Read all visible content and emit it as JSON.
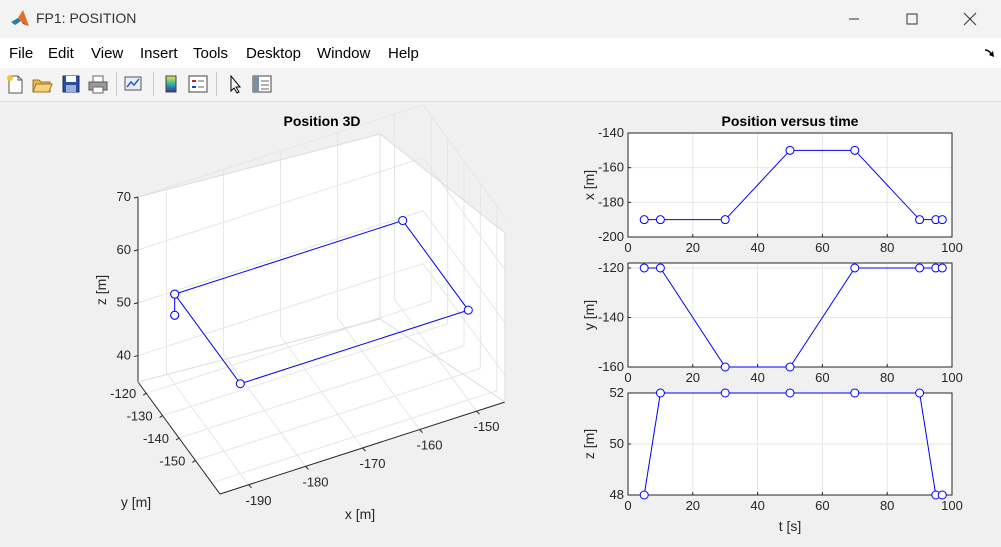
{
  "window": {
    "title": "FP1: POSITION"
  },
  "menu": [
    "File",
    "Edit",
    "View",
    "Insert",
    "Tools",
    "Desktop",
    "Window",
    "Help"
  ],
  "toolbar_icons": [
    "new-figure-icon",
    "open-file-icon",
    "save-icon",
    "print-icon",
    "link-plot-icon",
    "insert-colorbar-icon",
    "insert-legend-icon",
    "edit-plot-pointer-icon",
    "property-inspector-icon"
  ],
  "chart_data": [
    {
      "type": "line3d",
      "title": "Position 3D",
      "xlabel": "x [m]",
      "ylabel": "y [m]",
      "zlabel": "z [m]",
      "xticks": [
        "-190",
        "-180",
        "-170",
        "-160",
        "-150"
      ],
      "yticks": [
        "-120",
        "-130",
        "-140",
        "-150"
      ],
      "zticks": [
        "40",
        "50",
        "60",
        "70"
      ],
      "grid": true,
      "series": [
        {
          "x": [
            -190,
            -190,
            -150,
            -150,
            -190,
            -190,
            -190
          ],
          "y": [
            -120,
            -120,
            -120,
            -160,
            -160,
            -120,
            -120
          ],
          "z": [
            48,
            52,
            52,
            52,
            52,
            52,
            48
          ]
        }
      ]
    },
    {
      "type": "line",
      "title": "Position versus time",
      "ylabel": "x [m]",
      "xlabel": "",
      "xlim": [
        0,
        100
      ],
      "ylim": [
        -200,
        -140
      ],
      "xticks": [
        "0",
        "20",
        "40",
        "60",
        "80",
        "100"
      ],
      "yticks": [
        "-200",
        "-180",
        "-160",
        "-140"
      ],
      "grid": true,
      "series": [
        {
          "x": [
            5,
            10,
            30,
            50,
            70,
            90,
            95,
            97
          ],
          "y": [
            -190,
            -190,
            -190,
            -150,
            -150,
            -190,
            -190,
            -190
          ]
        }
      ]
    },
    {
      "type": "line",
      "title": "",
      "ylabel": "y [m]",
      "xlabel": "",
      "xlim": [
        0,
        100
      ],
      "ylim": [
        -160,
        -118
      ],
      "xticks": [
        "0",
        "20",
        "40",
        "60",
        "80",
        "100"
      ],
      "yticks": [
        "-160",
        "-140",
        "-120"
      ],
      "grid": true,
      "series": [
        {
          "x": [
            5,
            10,
            30,
            50,
            70,
            90,
            95,
            97
          ],
          "y": [
            -120,
            -120,
            -160,
            -160,
            -120,
            -120,
            -120,
            -120
          ]
        }
      ]
    },
    {
      "type": "line",
      "title": "",
      "ylabel": "z [m]",
      "xlabel": "t [s]",
      "xlim": [
        0,
        100
      ],
      "ylim": [
        48,
        52
      ],
      "xticks": [
        "0",
        "20",
        "40",
        "60",
        "80",
        "100"
      ],
      "yticks": [
        "48",
        "50",
        "52"
      ],
      "grid": true,
      "series": [
        {
          "x": [
            5,
            10,
            30,
            50,
            70,
            90,
            95,
            97
          ],
          "y": [
            48,
            52,
            52,
            52,
            52,
            52,
            48,
            48
          ]
        }
      ]
    }
  ]
}
